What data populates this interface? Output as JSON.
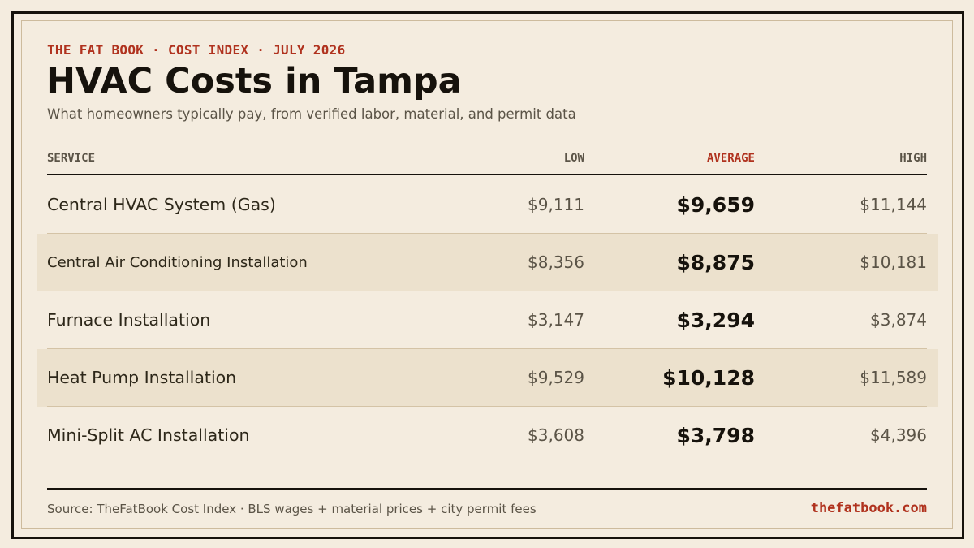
{
  "header": {
    "kicker": "THE FAT BOOK · COST INDEX · JULY 2026",
    "title": "HVAC Costs in Tampa",
    "subtitle": "What homeowners typically pay, from verified labor, material, and permit data"
  },
  "table": {
    "columns": {
      "service": "SERVICE",
      "low": "LOW",
      "average": "AVERAGE",
      "high": "HIGH"
    },
    "rows": [
      {
        "service": "Central HVAC System (Gas)",
        "low": "$9,111",
        "average": "$9,659",
        "high": "$11,144"
      },
      {
        "service": "Central Air Conditioning Installation",
        "low": "$8,356",
        "average": "$8,875",
        "high": "$10,181"
      },
      {
        "service": "Furnace Installation",
        "low": "$3,147",
        "average": "$3,294",
        "high": "$3,874"
      },
      {
        "service": "Heat Pump Installation",
        "low": "$9,529",
        "average": "$10,128",
        "high": "$11,589"
      },
      {
        "service": "Mini-Split AC Installation",
        "low": "$3,608",
        "average": "$3,798",
        "high": "$4,396"
      }
    ]
  },
  "footer": {
    "source": "Source: TheFatBook Cost Index · BLS wages + material prices + city permit fees",
    "site": "thefatbook.com"
  },
  "colors": {
    "background": "#f4ecdf",
    "accent": "#b0321e",
    "ink": "#16120c",
    "muted": "#5b5447",
    "row_shade": "#ece1cd"
  }
}
